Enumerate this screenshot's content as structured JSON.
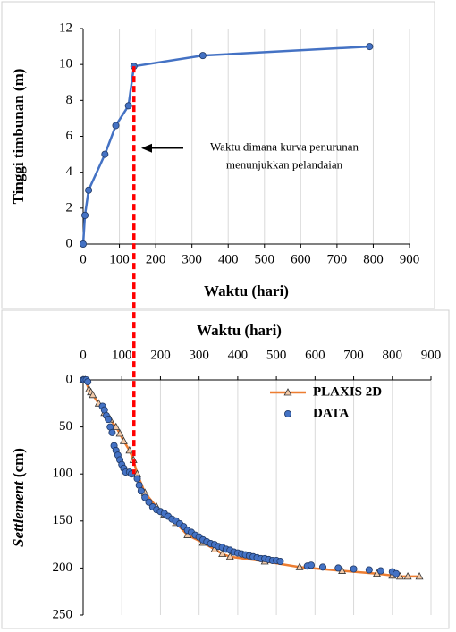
{
  "chart_data": [
    {
      "type": "line",
      "xlabel": "Waktu (hari)",
      "ylabel": "Tinggi timbunan (m)",
      "x": [
        0,
        5,
        15,
        60,
        90,
        125,
        140,
        330,
        790
      ],
      "values": [
        0,
        1.6,
        3,
        5,
        6.6,
        7.7,
        9.9,
        10.5,
        11
      ],
      "color": "#4472c4",
      "marker": "circle",
      "xlim": [
        0,
        900
      ],
      "xticks": [
        0,
        100,
        200,
        300,
        400,
        500,
        600,
        700,
        800,
        900
      ],
      "ylim": [
        0,
        12
      ],
      "yticks": [
        0,
        2,
        4,
        6,
        8,
        10,
        12
      ],
      "grid": "x",
      "annotation": [
        "Waktu dimana kurva penurunan",
        "menunjukkan pelandaian"
      ],
      "vline_x": 140,
      "vline_color": "#ff0000"
    },
    {
      "type": "line",
      "xlabel": "Waktu (hari)",
      "ylabel": [
        "Settlement",
        " (cm)"
      ],
      "xaxis_position": "top",
      "y_inverted": true,
      "xlim": [
        0,
        900
      ],
      "xticks": [
        0,
        100,
        200,
        300,
        400,
        500,
        600,
        700,
        800,
        900
      ],
      "ylim": [
        0,
        250
      ],
      "yticks": [
        0,
        50,
        100,
        150,
        200,
        250
      ],
      "grid": "x",
      "legend": "upper right",
      "series": [
        {
          "name": "PLAXIS 2D",
          "color": "#ed7d31",
          "marker": "triangle",
          "line": true,
          "x": [
            0,
            5,
            15,
            20,
            25,
            40,
            55,
            70,
            85,
            95,
            105,
            120,
            130,
            140,
            160,
            190,
            210,
            240,
            270,
            310,
            340,
            360,
            380,
            470,
            560,
            670,
            760,
            800,
            820,
            840,
            870
          ],
          "values": [
            0,
            0,
            10,
            13,
            16,
            25,
            35,
            42,
            50,
            57,
            65,
            75,
            85,
            100,
            120,
            135,
            143,
            152,
            165,
            173,
            180,
            185,
            188,
            193,
            199,
            203,
            206,
            208,
            209,
            209,
            209
          ]
        },
        {
          "name": "DATA",
          "color": "#4472c4",
          "marker": "circle",
          "line": false,
          "x": [
            0,
            3,
            8,
            12,
            50,
            55,
            60,
            65,
            70,
            75,
            80,
            85,
            90,
            95,
            100,
            105,
            110,
            120,
            125,
            140,
            145,
            150,
            160,
            170,
            180,
            190,
            200,
            210,
            220,
            230,
            240,
            250,
            260,
            270,
            280,
            290,
            300,
            310,
            320,
            330,
            340,
            350,
            360,
            370,
            380,
            390,
            400,
            410,
            420,
            430,
            440,
            450,
            460,
            470,
            480,
            490,
            500,
            510,
            580,
            590,
            620,
            660,
            700,
            740,
            770,
            800,
            810
          ],
          "values": [
            0,
            0,
            0,
            2,
            28,
            32,
            38,
            42,
            50,
            56,
            70,
            75,
            80,
            85,
            90,
            94,
            98,
            98,
            100,
            105,
            112,
            118,
            125,
            130,
            135,
            138,
            140,
            142,
            145,
            148,
            150,
            153,
            156,
            160,
            162,
            165,
            167,
            170,
            172,
            174,
            175,
            177,
            178,
            180,
            181,
            183,
            184,
            185,
            186,
            187,
            188,
            189,
            190,
            190,
            191,
            192,
            192,
            193,
            198,
            197,
            199,
            200,
            201,
            202,
            203,
            204,
            206
          ]
        }
      ]
    }
  ]
}
